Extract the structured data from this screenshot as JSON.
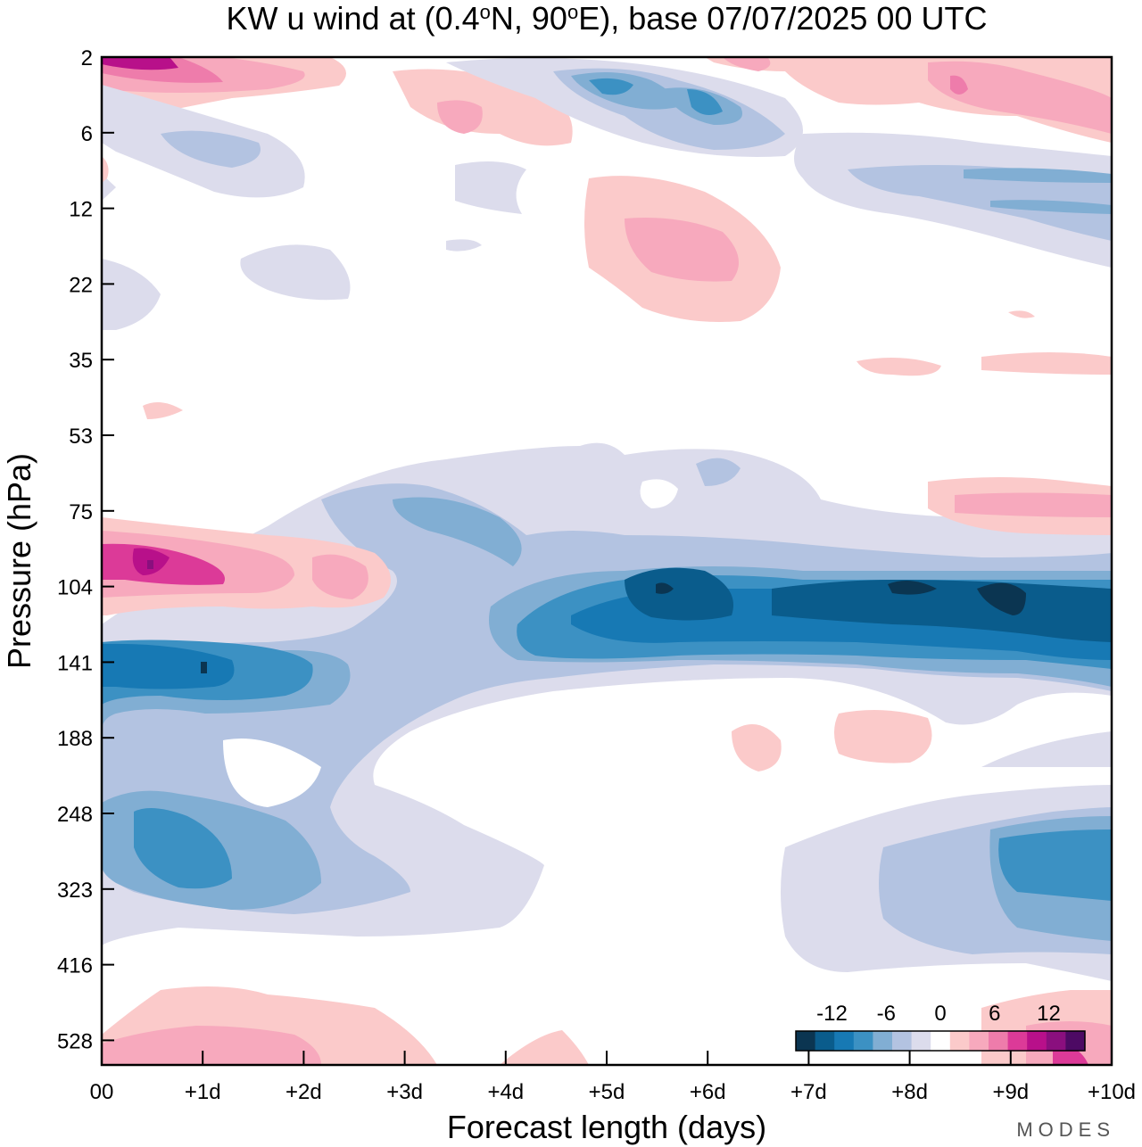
{
  "chart_data": {
    "type": "heatmap",
    "title": "KW u wind at (0.4°N, 90°E),  base 07/07/2025  00 UTC",
    "xlabel": "Forecast length (days)",
    "ylabel": "Pressure (hPa)",
    "x_ticks": [
      "00",
      "+1d",
      "+2d",
      "+3d",
      "+4d",
      "+5d",
      "+6d",
      "+7d",
      "+8d",
      "+9d",
      "+10d"
    ],
    "x_range_days": [
      0,
      10
    ],
    "y_ticks": [
      "2",
      "6",
      "12",
      "22",
      "35",
      "53",
      "75",
      "104",
      "141",
      "188",
      "248",
      "323",
      "416",
      "528"
    ],
    "y_scale": "log",
    "y_range_hPa": [
      2,
      640
    ],
    "colorbar": {
      "tick_labels": [
        "-12",
        "-6",
        "0",
        "6",
        "12"
      ],
      "tick_values": [
        -12,
        -6,
        0,
        6,
        12
      ],
      "bins": [
        {
          "min": -16,
          "max": -14,
          "color": "#0b3551"
        },
        {
          "min": -14,
          "max": -12,
          "color": "#0a5c8c"
        },
        {
          "min": -12,
          "max": -10,
          "color": "#1779b4"
        },
        {
          "min": -10,
          "max": -8,
          "color": "#3c91c3"
        },
        {
          "min": -8,
          "max": -6,
          "color": "#81aed3"
        },
        {
          "min": -6,
          "max": -4,
          "color": "#b3c3e1"
        },
        {
          "min": -4,
          "max": -2,
          "color": "#dcdcec"
        },
        {
          "min": -2,
          "max": 2,
          "color": "#ffffff"
        },
        {
          "min": 2,
          "max": 4,
          "color": "#fbcaca"
        },
        {
          "min": 4,
          "max": 6,
          "color": "#f7a9bd"
        },
        {
          "min": 6,
          "max": 8,
          "color": "#ee7cab"
        },
        {
          "min": 8,
          "max": 10,
          "color": "#dc3a98"
        },
        {
          "min": 10,
          "max": 12,
          "color": "#b8108a"
        },
        {
          "min": 12,
          "max": 14,
          "color": "#8a0f7e"
        },
        {
          "min": 14,
          "max": 16,
          "color": "#4d0a64"
        }
      ]
    },
    "features": [
      {
        "name": "upper-westerly-jet-start",
        "x0": 0,
        "x1": 2.5,
        "p_center": 2.6,
        "value": 10
      },
      {
        "name": "upper-easterly-day5-6",
        "x0": 4.8,
        "x1": 6.5,
        "p_center": 4,
        "value": -10
      },
      {
        "name": "upper-westerly-day6-7",
        "x0": 5.5,
        "x1": 7.0,
        "p_center": 17,
        "value": 5
      },
      {
        "name": "upper-westerly-late",
        "x0": 7.2,
        "x1": 10,
        "p_center": 3.5,
        "value": 6
      },
      {
        "name": "westerly-90hPa",
        "x0": 0,
        "x1": 2.8,
        "p_center": 90,
        "value": 10
      },
      {
        "name": "easterly-band-105hPa",
        "x0": 4.0,
        "x1": 10,
        "p_center": 106,
        "value": -14
      },
      {
        "name": "easterly-140hPa-early",
        "x0": 0,
        "x1": 2.2,
        "p_center": 140,
        "value": -12
      },
      {
        "name": "easterly-280hPa-early",
        "x0": 0.3,
        "x1": 3.2,
        "p_center": 285,
        "value": -10
      },
      {
        "name": "easterly-300hPa-late",
        "x0": 7.8,
        "x1": 10,
        "p_center": 300,
        "value": -8
      },
      {
        "name": "westerly-near-surface",
        "x0": 0,
        "x1": 3.0,
        "p_center": 590,
        "value": 5
      },
      {
        "name": "westerly-near-surface-late",
        "x0": 9.0,
        "x1": 10,
        "p_center": 610,
        "value": 6
      }
    ]
  },
  "branding": {
    "label": "MODES"
  }
}
